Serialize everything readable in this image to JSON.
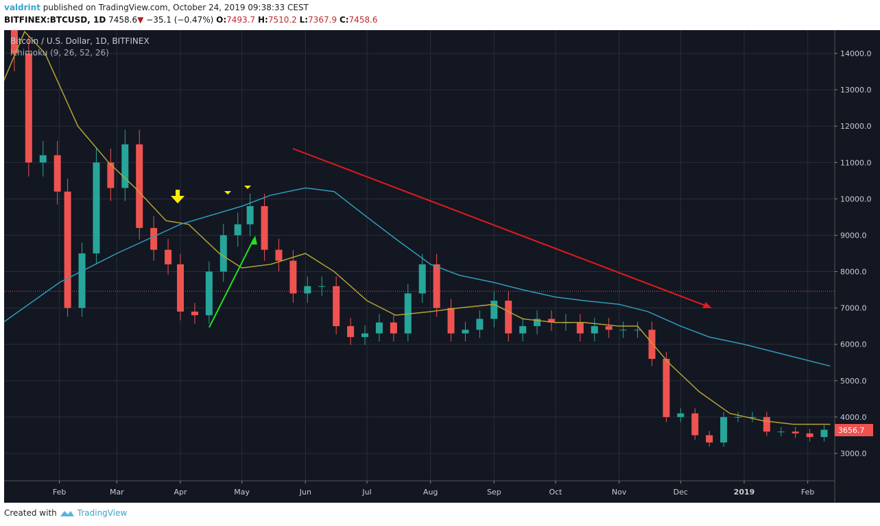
{
  "header": {
    "author": "valdrint",
    "published_text": "published on TradingView.com, October 24, 2019 09:38:33 CEST",
    "symbol": "BITFINEX:BTCUSD, 1D",
    "last": "7458.6",
    "change": "−35.1 (−0.47%)",
    "open_label": "O:",
    "open": "7493.7",
    "high_label": "H:",
    "high": "7510.2",
    "low_label": "L:",
    "low": "7367.9",
    "close_label": "C:",
    "close": "7458.6"
  },
  "legend": {
    "title": "Bitcoin / U.S. Dollar, 1D, BITFINEX",
    "indicator": "Ichimoku (9, 26, 52, 26)"
  },
  "footer": {
    "created_with": "Created with",
    "brand": "TradingView"
  },
  "colors": {
    "background": "#131722",
    "grid": "#2a2e39",
    "up": "#26a69a",
    "down": "#ef5350",
    "yellow_line": "#b5a533",
    "blue_line": "#2e9dbd",
    "price_line": "#ef5350",
    "trend_arrow": "#e01b1b",
    "green_arrow": "#22e022",
    "marker": "#ffee00"
  },
  "chart_data": {
    "type": "candlestick",
    "yaxis": {
      "range": [
        2000,
        14600
      ],
      "ticks": [
        "3000.0",
        "4000.0",
        "5000.0",
        "6000.0",
        "7000.0",
        "8000.0",
        "9000.0",
        "10000.0",
        "11000.0",
        "12000.0",
        "13000.0",
        "14000.0"
      ],
      "position": "right"
    },
    "xaxis": {
      "range": [
        "2018-01-02",
        "2019-02-12"
      ],
      "ticks": [
        {
          "date": "2018-02-01",
          "label": "Feb"
        },
        {
          "date": "2018-03-01",
          "label": "Mar"
        },
        {
          "date": "2018-04-01",
          "label": "Apr"
        },
        {
          "date": "2018-05-01",
          "label": "May"
        },
        {
          "date": "2018-06-01",
          "label": "Jun"
        },
        {
          "date": "2018-07-01",
          "label": "Jul"
        },
        {
          "date": "2018-08-01",
          "label": "Aug"
        },
        {
          "date": "2018-09-01",
          "label": "Sep"
        },
        {
          "date": "2018-10-01",
          "label": "Oct"
        },
        {
          "date": "2018-11-01",
          "label": "Nov"
        },
        {
          "date": "2018-12-01",
          "label": "Dec"
        },
        {
          "date": "2019-01-01",
          "label": "2019"
        },
        {
          "date": "2019-02-01",
          "label": "Feb"
        }
      ]
    },
    "grid": true,
    "current_price_label": "3656.7",
    "price_line": 7458.6,
    "closes": [
      [
        "2018-01-03",
        15000
      ],
      [
        "2018-01-10",
        14000
      ],
      [
        "2018-01-17",
        11000
      ],
      [
        "2018-01-24",
        11200
      ],
      [
        "2018-01-31",
        10200
      ],
      [
        "2018-02-05",
        7000
      ],
      [
        "2018-02-12",
        8500
      ],
      [
        "2018-02-19",
        11000
      ],
      [
        "2018-02-26",
        10300
      ],
      [
        "2018-03-05",
        11500
      ],
      [
        "2018-03-12",
        9200
      ],
      [
        "2018-03-19",
        8600
      ],
      [
        "2018-03-26",
        8200
      ],
      [
        "2018-04-01",
        6900
      ],
      [
        "2018-04-08",
        6800
      ],
      [
        "2018-04-15",
        8000
      ],
      [
        "2018-04-22",
        9000
      ],
      [
        "2018-04-29",
        9300
      ],
      [
        "2018-05-05",
        9800
      ],
      [
        "2018-05-12",
        8600
      ],
      [
        "2018-05-19",
        8300
      ],
      [
        "2018-05-26",
        7400
      ],
      [
        "2018-06-02",
        7600
      ],
      [
        "2018-06-09",
        7600
      ],
      [
        "2018-06-16",
        6500
      ],
      [
        "2018-06-23",
        6200
      ],
      [
        "2018-06-30",
        6300
      ],
      [
        "2018-07-07",
        6600
      ],
      [
        "2018-07-14",
        6300
      ],
      [
        "2018-07-21",
        7400
      ],
      [
        "2018-07-28",
        8200
      ],
      [
        "2018-08-04",
        7000
      ],
      [
        "2018-08-11",
        6300
      ],
      [
        "2018-08-18",
        6400
      ],
      [
        "2018-08-25",
        6700
      ],
      [
        "2018-09-01",
        7200
      ],
      [
        "2018-09-08",
        6300
      ],
      [
        "2018-09-15",
        6500
      ],
      [
        "2018-09-22",
        6700
      ],
      [
        "2018-09-29",
        6600
      ],
      [
        "2018-10-06",
        6600
      ],
      [
        "2018-10-13",
        6300
      ],
      [
        "2018-10-20",
        6500
      ],
      [
        "2018-10-27",
        6400
      ],
      [
        "2018-11-03",
        6400
      ],
      [
        "2018-11-10",
        6400
      ],
      [
        "2018-11-17",
        5600
      ],
      [
        "2018-11-24",
        4000
      ],
      [
        "2018-12-01",
        4100
      ],
      [
        "2018-12-08",
        3500
      ],
      [
        "2018-12-15",
        3300
      ],
      [
        "2018-12-22",
        4000
      ],
      [
        "2018-12-29",
        4000
      ],
      [
        "2019-01-05",
        4000
      ],
      [
        "2019-01-12",
        3600
      ],
      [
        "2019-01-19",
        3600
      ],
      [
        "2019-01-26",
        3550
      ],
      [
        "2019-02-02",
        3450
      ],
      [
        "2019-02-09",
        3650
      ]
    ],
    "series": [
      {
        "color": "#b5a533",
        "points": [
          [
            "2018-01-03",
            13000
          ],
          [
            "2018-01-15",
            14600
          ],
          [
            "2018-01-25",
            14000
          ],
          [
            "2018-02-10",
            12000
          ],
          [
            "2018-02-25",
            11000
          ],
          [
            "2018-03-10",
            10300
          ],
          [
            "2018-03-25",
            9400
          ],
          [
            "2018-04-05",
            9300
          ],
          [
            "2018-04-20",
            8500
          ],
          [
            "2018-05-01",
            8100
          ],
          [
            "2018-05-15",
            8200
          ],
          [
            "2018-06-01",
            8500
          ],
          [
            "2018-06-15",
            8000
          ],
          [
            "2018-07-01",
            7200
          ],
          [
            "2018-07-15",
            6800
          ],
          [
            "2018-08-01",
            6900
          ],
          [
            "2018-08-15",
            7000
          ],
          [
            "2018-09-01",
            7100
          ],
          [
            "2018-09-15",
            6700
          ],
          [
            "2018-10-01",
            6600
          ],
          [
            "2018-10-15",
            6600
          ],
          [
            "2018-11-01",
            6500
          ],
          [
            "2018-11-10",
            6500
          ],
          [
            "2018-11-25",
            5500
          ],
          [
            "2018-12-10",
            4700
          ],
          [
            "2018-12-25",
            4100
          ],
          [
            "2019-01-10",
            3900
          ],
          [
            "2019-01-25",
            3800
          ],
          [
            "2019-02-12",
            3800
          ]
        ]
      },
      {
        "color": "#2e9dbd",
        "points": [
          [
            "2018-01-02",
            6500
          ],
          [
            "2018-02-01",
            7700
          ],
          [
            "2018-03-01",
            8500
          ],
          [
            "2018-04-01",
            9300
          ],
          [
            "2018-05-01",
            9800
          ],
          [
            "2018-05-15",
            10100
          ],
          [
            "2018-06-01",
            10300
          ],
          [
            "2018-06-15",
            10200
          ],
          [
            "2018-07-01",
            9500
          ],
          [
            "2018-07-15",
            8900
          ],
          [
            "2018-08-01",
            8200
          ],
          [
            "2018-08-15",
            7900
          ],
          [
            "2018-09-01",
            7700
          ],
          [
            "2018-09-15",
            7500
          ],
          [
            "2018-10-01",
            7300
          ],
          [
            "2018-10-15",
            7200
          ],
          [
            "2018-11-01",
            7100
          ],
          [
            "2018-11-15",
            6900
          ],
          [
            "2018-12-01",
            6500
          ],
          [
            "2018-12-15",
            6200
          ],
          [
            "2019-01-01",
            6000
          ],
          [
            "2019-01-15",
            5800
          ],
          [
            "2019-02-12",
            5400
          ]
        ]
      }
    ]
  }
}
